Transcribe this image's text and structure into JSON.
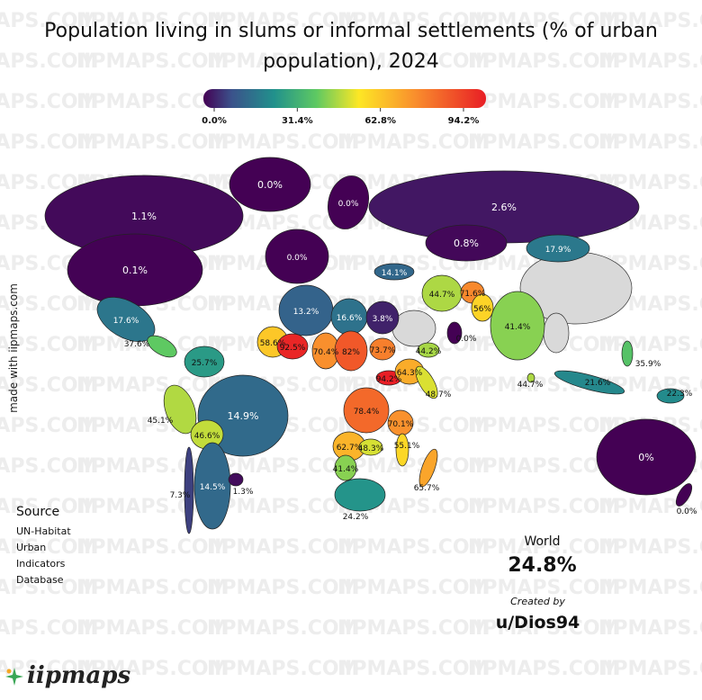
{
  "title": "Population living in slums or informal settlements (% of urban population), 2024",
  "colorbar": {
    "range": [
      0,
      94.2
    ],
    "ticks": [
      {
        "value": 0,
        "label": "0.0%"
      },
      {
        "value": 31.4,
        "label": "31.4%"
      },
      {
        "value": 62.8,
        "label": "62.8%"
      },
      {
        "value": 94.2,
        "label": "94.2%"
      }
    ]
  },
  "regions": [
    {
      "value": 1.1,
      "label": "1.1%"
    },
    {
      "value": 0,
      "label": "0.0%"
    },
    {
      "value": 0.1,
      "label": "0.1%"
    },
    {
      "value": 17.6,
      "label": "17.6%"
    },
    {
      "value": 37.6,
      "label": "37.6%"
    },
    {
      "value": 25.7,
      "label": "25.7%"
    },
    {
      "value": 45.1,
      "label": "45.1%"
    },
    {
      "value": 14.9,
      "label": "14.9%"
    },
    {
      "value": 46.6,
      "label": "46.6%"
    },
    {
      "value": 14.5,
      "label": "14.5%"
    },
    {
      "value": 7.3,
      "label": "7.3%"
    },
    {
      "value": 1.3,
      "label": "1.3%"
    },
    {
      "value": 0,
      "label": "0.0%"
    },
    {
      "value": 0,
      "label": "0.0%"
    },
    {
      "value": 2.6,
      "label": "2.6%"
    },
    {
      "value": 0.8,
      "label": "0.8%"
    },
    {
      "value": 17.9,
      "label": "17.9%"
    },
    {
      "value": 14.1,
      "label": "14.1%"
    },
    {
      "value": 44.7,
      "label": "44.7%"
    },
    {
      "value": 71.6,
      "label": "71.6%"
    },
    {
      "value": 56,
      "label": "56%"
    },
    {
      "value": 41.4,
      "label": "41.4%"
    },
    {
      "value": 13.2,
      "label": "13.2%"
    },
    {
      "value": 16.6,
      "label": "16.6%"
    },
    {
      "value": 3.8,
      "label": "3.8%"
    },
    {
      "value": 58.6,
      "label": "58.6%"
    },
    {
      "value": 92.5,
      "label": "92.5%"
    },
    {
      "value": 70.4,
      "label": "70.4%"
    },
    {
      "value": 82,
      "label": "82%"
    },
    {
      "value": 73.7,
      "label": "73.7%"
    },
    {
      "value": 94.2,
      "label": "94.2%"
    },
    {
      "value": 64.3,
      "label": "64.3%"
    },
    {
      "value": 48.7,
      "label": "48.7%"
    },
    {
      "value": 78.4,
      "label": "78.4%"
    },
    {
      "value": 70.1,
      "label": "70.1%"
    },
    {
      "value": 62.7,
      "label": "62.7%"
    },
    {
      "value": 48.3,
      "label": "48.3%"
    },
    {
      "value": 41.4,
      "label": "41.4%"
    },
    {
      "value": 24.2,
      "label": "24.2%"
    },
    {
      "value": 65.7,
      "label": "65.7%"
    },
    {
      "value": 44.2,
      "label": "44.2%"
    },
    {
      "value": 0,
      "label": "0.0%"
    },
    {
      "value": 21.6,
      "label": "21.6%"
    },
    {
      "value": 35.9,
      "label": "35.9%"
    },
    {
      "value": 22.3,
      "label": "22.3%"
    },
    {
      "value": 0,
      "label": "0%"
    },
    {
      "value": 0,
      "label": "0.0%"
    },
    {
      "value": 44.7,
      "label": "44.7%"
    },
    {
      "value": 55.1,
      "label": "55.1%"
    }
  ],
  "side_note": "made with iipmaps.com",
  "source": {
    "heading": "Source",
    "lines": [
      "UN-Habitat",
      "Urban",
      "Indicators",
      "Database"
    ]
  },
  "world": {
    "label": "World",
    "value": "24.8%"
  },
  "credit": {
    "label": "Created by",
    "author": "u/Dios94"
  },
  "logo": "iipmaps",
  "watermark": "IIPMAPS.COM"
}
